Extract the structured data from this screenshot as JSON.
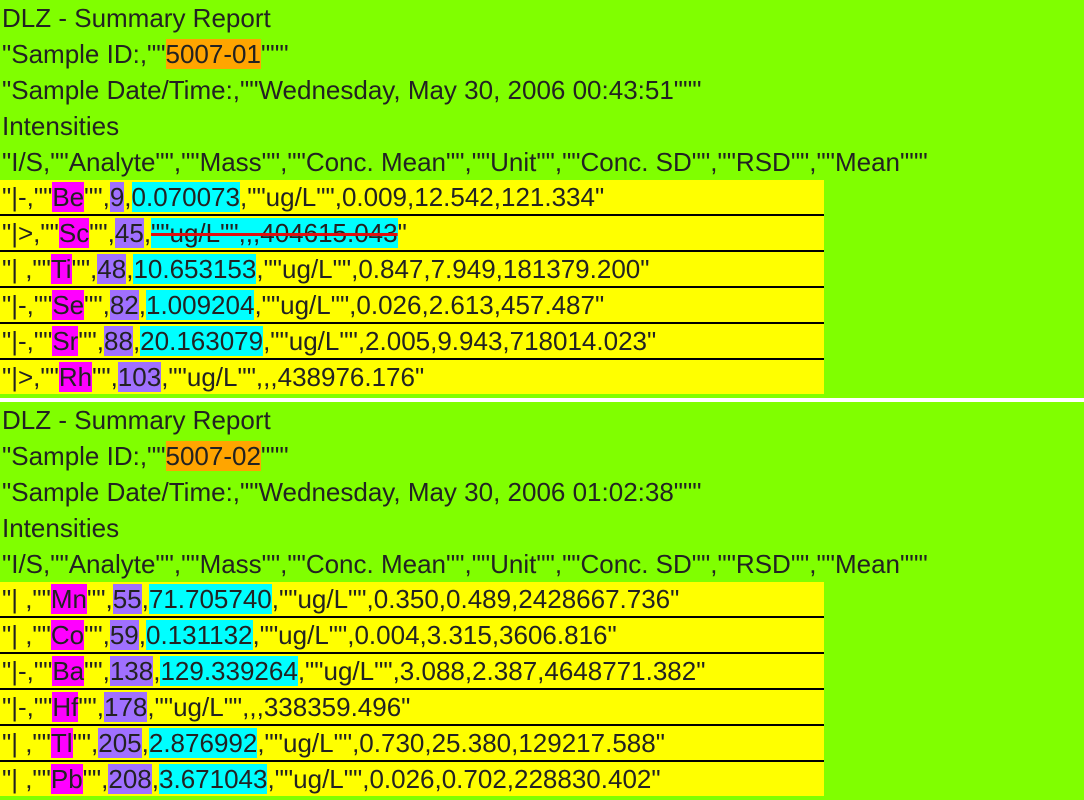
{
  "colors": {
    "background": "#80ff00",
    "row_background": "#ffff00",
    "sample_id_highlight": "#ffa500",
    "analyte_highlight": "#ff00ff",
    "mass_highlight": "#a070ff",
    "conc_highlight": "#00ffff",
    "strike_color": "#e01010"
  },
  "reports": [
    {
      "title": "DLZ - Summary Report",
      "sample_id_prefix": "\"Sample ID:,\"\"",
      "sample_id": "5007-01",
      "sample_id_suffix": "\"\"\"",
      "date_line": "\"Sample Date/Time:,\"\"Wednesday, May 30, 2006 00:43:51\"\"\"",
      "section": "Intensities",
      "header": "\"I/S,\"\"Analyte\"\",\"\"Mass\"\",\"\"Conc. Mean\"\",\"\"Unit\"\",\"\"Conc. SD\"\",\"\"RSD\"\",\"\"Mean\"\"\"",
      "rows": [
        {
          "p1": "\"|-,\"\"",
          "analyte": "Be",
          "p2": "\"\",",
          "mass": "9",
          "p3": ",",
          "conc": "0.070073",
          "rest": ",\"\"ug/L\"\",0.009,12.542,121.334\""
        },
        {
          "p1": "\"|>,\"\"",
          "analyte": "Sc",
          "p2": "\"\",",
          "mass": "45",
          "p3": ",",
          "conc": "",
          "rest": "\"\"ug/L\"\",,,404615.043",
          "struck": true,
          "tail": "\""
        },
        {
          "p1": "\"| ,\"\"",
          "analyte": "Ti",
          "p2": "\"\",",
          "mass": "48",
          "p3": ",",
          "conc": "10.653153",
          "rest": ",\"\"ug/L\"\",0.847,7.949,181379.200\""
        },
        {
          "p1": "\"|-,\"\"",
          "analyte": "Se",
          "p2": "\"\",",
          "mass": "82",
          "p3": ",",
          "conc": "1.009204",
          "rest": ",\"\"ug/L\"\",0.026,2.613,457.487\""
        },
        {
          "p1": "\"|-,\"\"",
          "analyte": "Sr",
          "p2": "\"\",",
          "mass": "88",
          "p3": ",",
          "conc": "20.163079",
          "rest": ",\"\"ug/L\"\",2.005,9.943,718014.023\""
        },
        {
          "p1": "\"|>,\"\"",
          "analyte": "Rh",
          "p2": "\"\",",
          "mass": "103",
          "p3": ",",
          "conc": "",
          "rest": ",\"\"ug/L\"\",,,438976.176\""
        }
      ]
    },
    {
      "title": "DLZ - Summary Report",
      "sample_id_prefix": "\"Sample ID:,\"\"",
      "sample_id": "5007-02",
      "sample_id_suffix": "\"\"\"",
      "date_line": "\"Sample Date/Time:,\"\"Wednesday, May 30, 2006 01:02:38\"\"\"",
      "section": "Intensities",
      "header": "\"I/S,\"\"Analyte\"\",\"\"Mass\"\",\"\"Conc. Mean\"\",\"\"Unit\"\",\"\"Conc. SD\"\",\"\"RSD\"\",\"\"Mean\"\"\"",
      "rows": [
        {
          "p1": "\"| ,\"\"",
          "analyte": "Mn",
          "p2": "\"\",",
          "mass": "55",
          "p3": ",",
          "conc": "71.705740",
          "rest": ",\"\"ug/L\"\",0.350,0.489,2428667.736\""
        },
        {
          "p1": "\"| ,\"\"",
          "analyte": "Co",
          "p2": "\"\",",
          "mass": "59",
          "p3": ",",
          "conc": "0.131132",
          "rest": ",\"\"ug/L\"\",0.004,3.315,3606.816\""
        },
        {
          "p1": "\"|-,\"\"",
          "analyte": "Ba",
          "p2": "\"\",",
          "mass": "138",
          "p3": ",",
          "conc": "129.339264",
          "rest": ",\"\"ug/L\"\",3.088,2.387,4648771.382\""
        },
        {
          "p1": "\"|-,\"\"",
          "analyte": "Hf",
          "p2": "\"\",",
          "mass": "178",
          "p3": ",",
          "conc": "",
          "rest": ",\"\"ug/L\"\",,,338359.496\""
        },
        {
          "p1": "\"| ,\"\"",
          "analyte": "Tl",
          "p2": "\"\",",
          "mass": "205",
          "p3": ",",
          "conc": "2.876992",
          "rest": ",\"\"ug/L\"\",0.730,25.380,129217.588\""
        },
        {
          "p1": "\"| ,\"\"",
          "analyte": "Pb",
          "p2": "\"\",",
          "mass": "208",
          "p3": ",",
          "conc": "3.671043",
          "rest": ",\"\"ug/L\"\",0.026,0.702,228830.402\""
        }
      ]
    }
  ]
}
